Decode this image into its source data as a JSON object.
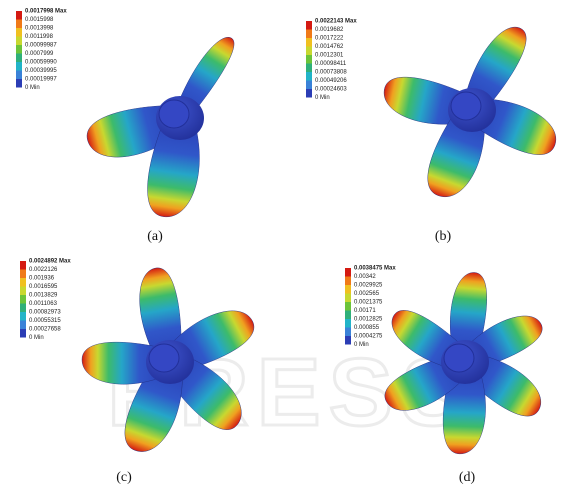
{
  "panels": [
    {
      "caption": "(a)",
      "legend": [
        "0.0017998 Max",
        "0.0015998",
        "0.0013998",
        "0.0011998",
        "0.00099987",
        "0.0007999",
        "0.00059990",
        "0.00039995",
        "0.00019997",
        "0 Min"
      ]
    },
    {
      "caption": "(b)",
      "legend": [
        "0.0022143 Max",
        "0.0019682",
        "0.0017222",
        "0.0014762",
        "0.0012301",
        "0.00098411",
        "0.00073808",
        "0.00049206",
        "0.00024603",
        "0 Min"
      ]
    },
    {
      "caption": "(c)",
      "legend": [
        "0.0024892 Max",
        "0.0022126",
        "0.001936",
        "0.0016595",
        "0.0013829",
        "0.0011063",
        "0.00082973",
        "0.00055315",
        "0.00027658",
        "0 Min"
      ]
    },
    {
      "caption": "(d)",
      "legend": [
        "0.0038475 Max",
        "0.00342",
        "0.0029925",
        "0.002565",
        "0.0021375",
        "0.00171",
        "0.0012825",
        "0.000855",
        "0.0004275",
        "0 Min"
      ]
    }
  ],
  "watermark": "PRESS"
}
